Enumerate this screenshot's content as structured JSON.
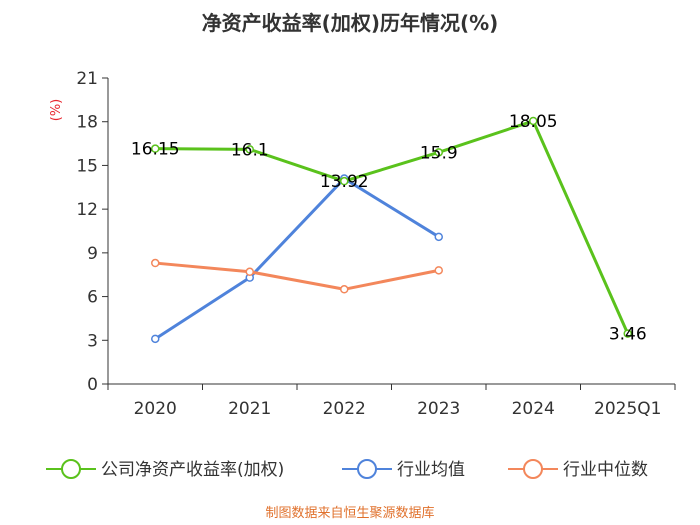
{
  "chart_data": {
    "type": "line",
    "title": "净资产收益率(加权)历年情况(%)",
    "unit_label": "(%)",
    "categories": [
      "2020",
      "2021",
      "2022",
      "2023",
      "2024",
      "2025Q1"
    ],
    "yticks": [
      "0",
      "3",
      "6",
      "9",
      "12",
      "15",
      "18",
      "21"
    ],
    "ylim": [
      0,
      21
    ],
    "series": [
      {
        "name": "公司净资产收益率(加权)",
        "color": "#5ac21c",
        "values": [
          16.15,
          16.1,
          13.92,
          15.9,
          18.05,
          3.46
        ],
        "labels": [
          "16.15",
          "16.1",
          "13.92",
          "15.9",
          "18.05",
          "3.46"
        ]
      },
      {
        "name": "行业均值",
        "color": "#4f83db",
        "values": [
          3.1,
          7.3,
          14.1,
          10.1,
          null,
          null
        ]
      },
      {
        "name": "行业中位数",
        "color": "#f3875b",
        "values": [
          8.3,
          7.7,
          6.5,
          7.8,
          null,
          null
        ]
      }
    ],
    "source": "制图数据来自恒生聚源数据库"
  }
}
